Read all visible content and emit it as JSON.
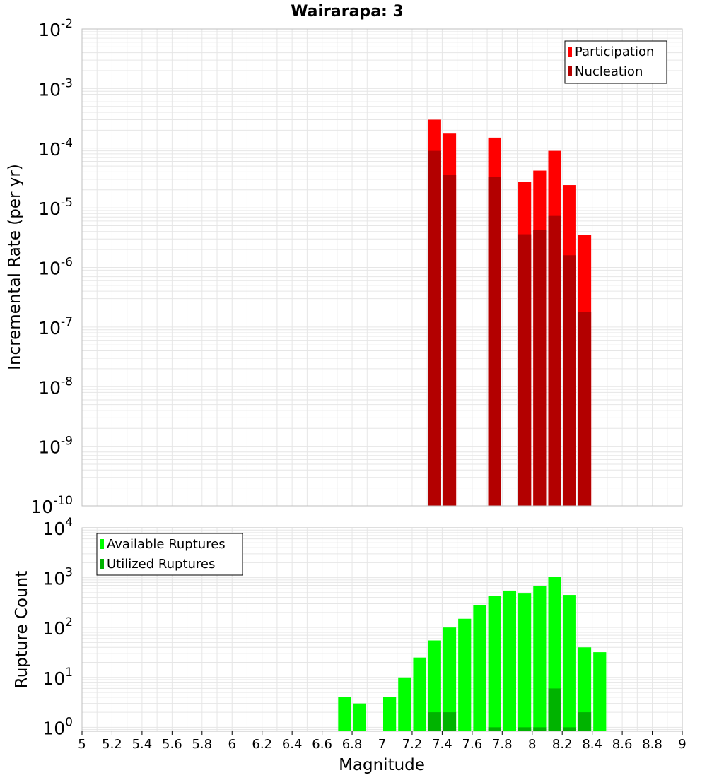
{
  "title": "Wairarapa: 3",
  "colors": {
    "participation": "#ff0000",
    "nucleation": "#b30000",
    "available": "#00ff00",
    "utilized": "#00b300",
    "grid": "#e6e6e6",
    "frame": "#bfbfbf"
  },
  "chart_data": [
    {
      "type": "bar",
      "yscale": "log",
      "ylabel": "Incremental Rate (per yr)",
      "xlim": [
        5,
        9
      ],
      "ylim_exponents": [
        -10,
        -2
      ],
      "y_tick_base": "10",
      "y_tick_exponents": [
        "-10",
        "-9",
        "-8",
        "-7",
        "-6",
        "-5",
        "-4",
        "-3",
        "-2"
      ],
      "legend": [
        "Participation",
        "Nucleation"
      ],
      "legend_position": "top-right",
      "bin_width": 0.1,
      "series": [
        {
          "name": "Participation",
          "x": [
            7.35,
            7.45,
            7.75,
            7.95,
            8.05,
            8.15,
            8.25,
            8.35
          ],
          "values": [
            0.0003,
            0.00018,
            0.00015,
            2.7e-05,
            4.2e-05,
            9e-05,
            2.4e-05,
            3.5e-06
          ]
        },
        {
          "name": "Nucleation",
          "x": [
            7.35,
            7.45,
            7.75,
            7.95,
            8.05,
            8.15,
            8.25,
            8.35
          ],
          "values": [
            9e-05,
            3.6e-05,
            3.3e-05,
            3.6e-06,
            4.3e-06,
            7.3e-06,
            1.6e-06,
            1.8e-07
          ]
        }
      ]
    },
    {
      "type": "bar",
      "yscale": "log",
      "ylabel": "Rupture Count",
      "xlabel": "Magnitude",
      "xlim": [
        5,
        9
      ],
      "ylim_exponents": [
        -0.08,
        4
      ],
      "y_tick_base": "10",
      "y_tick_exponents": [
        "0",
        "1",
        "2",
        "3",
        "4"
      ],
      "x_ticks": [
        "5",
        "5.2",
        "5.4",
        "5.6",
        "5.8",
        "6",
        "6.2",
        "6.4",
        "6.6",
        "6.8",
        "7",
        "7.2",
        "7.4",
        "7.6",
        "7.8",
        "8",
        "8.2",
        "8.4",
        "8.6",
        "8.8",
        "9"
      ],
      "legend": [
        "Available Ruptures",
        "Utilized Ruptures"
      ],
      "legend_position": "top-left",
      "bin_width": 0.1,
      "series": [
        {
          "name": "Available Ruptures",
          "x": [
            6.75,
            6.85,
            7.05,
            7.15,
            7.25,
            7.35,
            7.45,
            7.55,
            7.65,
            7.75,
            7.85,
            7.95,
            8.05,
            8.15,
            8.25,
            8.35,
            8.45
          ],
          "values": [
            4,
            3,
            4,
            10,
            25,
            55,
            100,
            150,
            280,
            430,
            550,
            480,
            680,
            1050,
            450,
            40,
            32
          ]
        },
        {
          "name": "Utilized Ruptures",
          "x": [
            7.35,
            7.45,
            7.75,
            7.95,
            8.05,
            8.15,
            8.25,
            8.35
          ],
          "values": [
            2,
            2,
            1,
            1,
            1,
            6,
            1,
            2
          ]
        }
      ]
    }
  ]
}
